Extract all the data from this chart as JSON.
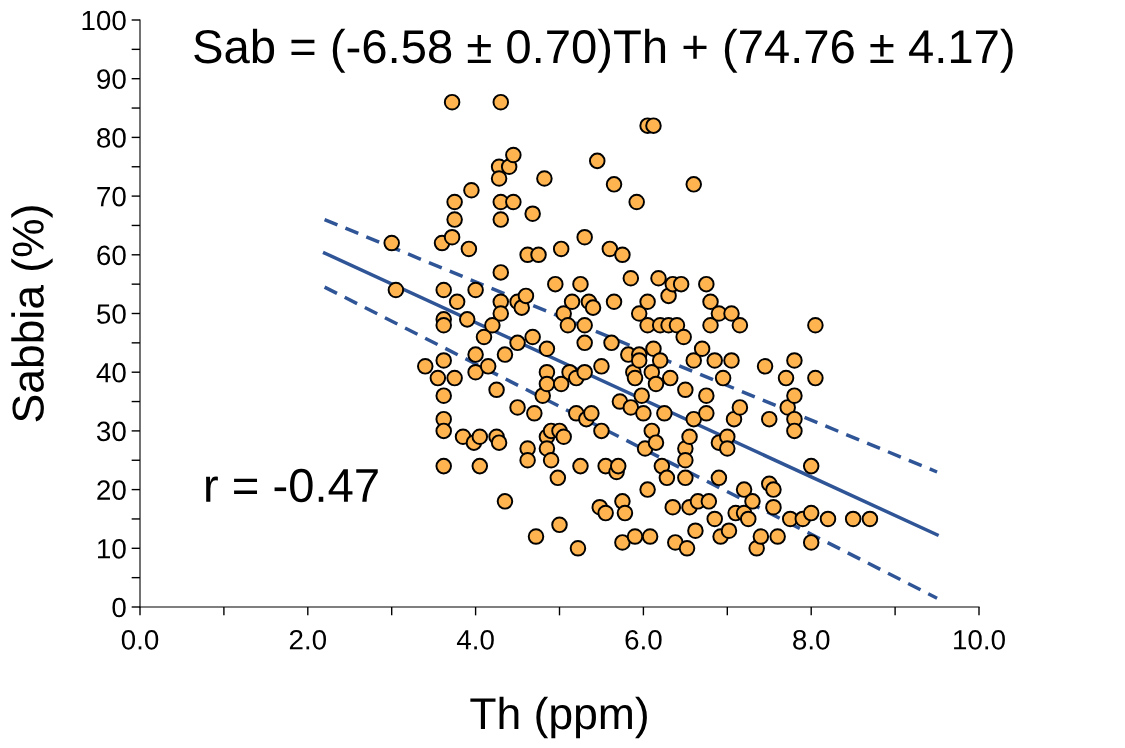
{
  "chart_data": {
    "type": "scatter",
    "xlabel": "Th (ppm)",
    "ylabel": "Sabbia (%)",
    "xlim": [
      0,
      10
    ],
    "ylim": [
      0,
      100
    ],
    "xticks": [
      {
        "value": 0,
        "label": "0.0"
      },
      {
        "value": 1,
        "label": null
      },
      {
        "value": 2,
        "label": "2.0"
      },
      {
        "value": 3,
        "label": null
      },
      {
        "value": 4,
        "label": "4.0"
      },
      {
        "value": 5,
        "label": null
      },
      {
        "value": 6,
        "label": "6.0"
      },
      {
        "value": 7,
        "label": null
      },
      {
        "value": 8,
        "label": "8.0"
      },
      {
        "value": 9,
        "label": null
      },
      {
        "value": 10,
        "label": "10.0"
      }
    ],
    "yticks": [
      0,
      {
        "value": 5,
        "label": null
      },
      10,
      {
        "value": 15,
        "label": null
      },
      20,
      {
        "value": 25,
        "label": null
      },
      30,
      {
        "value": 35,
        "label": null
      },
      40,
      {
        "value": 45,
        "label": null
      },
      50,
      {
        "value": 55,
        "label": null
      },
      60,
      {
        "value": 65,
        "label": null
      },
      70,
      {
        "value": 75,
        "label": null
      },
      80,
      {
        "value": 85,
        "label": null
      },
      90,
      {
        "value": 95,
        "label": null
      },
      100
    ],
    "grid": false,
    "legend": false,
    "marker": "circle",
    "annotations": [
      "Sab = (-6.58 ± 0.70)Th + (74.76 ± 4.17)",
      "r = -0.47"
    ],
    "series": [
      {
        "color": "#ffb44f",
        "x": [
          3.0,
          3.05,
          3.4,
          3.55,
          3.6,
          3.62,
          3.62,
          3.62,
          3.62,
          3.62,
          3.62,
          3.62,
          3.62,
          3.72,
          3.75,
          3.75,
          3.72,
          3.78,
          3.75,
          3.85,
          3.9,
          3.92,
          3.95,
          3.98,
          4.0,
          4.0,
          4.0,
          4.05,
          4.05,
          4.1,
          4.15,
          4.2,
          4.25,
          4.25,
          4.28,
          4.3,
          4.28,
          4.28,
          4.3,
          4.3,
          4.3,
          4.3,
          4.3,
          4.35,
          4.35,
          4.4,
          4.45,
          4.45,
          4.5,
          4.5,
          4.5,
          4.55,
          4.6,
          4.62,
          4.62,
          4.62,
          4.68,
          4.68,
          4.7,
          4.72,
          4.75,
          4.8,
          4.82,
          4.85,
          4.85,
          4.85,
          4.85,
          4.85,
          4.9,
          4.9,
          4.95,
          4.98,
          5.0,
          5.0,
          5.02,
          5.02,
          5.05,
          5.05,
          5.1,
          5.12,
          5.15,
          5.2,
          5.2,
          5.22,
          5.25,
          5.25,
          5.3,
          5.3,
          5.3,
          5.3,
          5.32,
          5.35,
          5.38,
          5.4,
          5.45,
          5.48,
          5.5,
          5.5,
          5.55,
          5.55,
          5.6,
          5.62,
          5.65,
          5.65,
          5.68,
          5.7,
          5.72,
          5.75,
          5.75,
          5.75,
          5.78,
          5.82,
          5.85,
          5.85,
          5.88,
          5.9,
          5.9,
          5.92,
          5.95,
          5.95,
          5.95,
          5.98,
          6.0,
          6.02,
          6.05,
          6.05,
          6.05,
          6.05,
          6.08,
          6.1,
          6.1,
          6.12,
          6.12,
          6.15,
          6.15,
          6.18,
          6.2,
          6.2,
          6.22,
          6.25,
          6.28,
          6.3,
          6.3,
          6.32,
          6.35,
          6.35,
          6.38,
          6.4,
          6.45,
          6.48,
          6.5,
          6.5,
          6.5,
          6.5,
          6.52,
          6.55,
          6.55,
          6.6,
          6.6,
          6.6,
          6.62,
          6.65,
          6.7,
          6.75,
          6.75,
          6.75,
          6.78,
          6.8,
          6.8,
          6.85,
          6.85,
          6.9,
          6.9,
          6.9,
          6.92,
          6.95,
          7.0,
          7.0,
          7.02,
          7.05,
          7.05,
          7.08,
          7.1,
          7.15,
          7.15,
          7.2,
          7.2,
          7.25,
          7.3,
          7.35,
          7.4,
          7.45,
          7.5,
          7.5,
          7.55,
          7.55,
          7.6,
          7.7,
          7.72,
          7.75,
          7.8,
          7.8,
          7.8,
          7.8,
          7.9,
          8.0,
          8.0,
          8.0,
          8.05,
          8.05,
          8.2,
          8.5,
          8.7
        ],
        "values": [
          62,
          54,
          41,
          39,
          62,
          54,
          49,
          48,
          42,
          36,
          32,
          30,
          24,
          86,
          69,
          66,
          63,
          52,
          39,
          29,
          49,
          61,
          71,
          28,
          54,
          43,
          40,
          29,
          24,
          46,
          41,
          48,
          37,
          29,
          28,
          86,
          75,
          73,
          69,
          66,
          57,
          52,
          50,
          43,
          18,
          75,
          77,
          69,
          52,
          45,
          34,
          51,
          53,
          60,
          27,
          25,
          67,
          46,
          33,
          12,
          60,
          36,
          73,
          44,
          40,
          38,
          29,
          27,
          30,
          25,
          55,
          22,
          14,
          30,
          38,
          61,
          50,
          29,
          48,
          40,
          52,
          39,
          33,
          10,
          55,
          24,
          63,
          48,
          45,
          40,
          32,
          52,
          33,
          51,
          76,
          17,
          30,
          41,
          24,
          16,
          61,
          45,
          52,
          72,
          23,
          24,
          35,
          60,
          18,
          11,
          16,
          43,
          56,
          34,
          40,
          39,
          12,
          69,
          50,
          43,
          42,
          36,
          33,
          27,
          82,
          52,
          48,
          20,
          12,
          40,
          30,
          82,
          44,
          38,
          28,
          56,
          48,
          42,
          24,
          33,
          22,
          53,
          48,
          39,
          55,
          17,
          11,
          48,
          55,
          46,
          37,
          27,
          25,
          22,
          10,
          29,
          17,
          72,
          42,
          32,
          13,
          18,
          44,
          55,
          36,
          33,
          18,
          52,
          48,
          42,
          15,
          50,
          28,
          22,
          12,
          39,
          29,
          27,
          13,
          50,
          42,
          32,
          16,
          48,
          34,
          20,
          16,
          15,
          18,
          10,
          12,
          41,
          32,
          21,
          20,
          17,
          12,
          39,
          34,
          15,
          42,
          36,
          32,
          30,
          15,
          24,
          16,
          11,
          48,
          39,
          15,
          15,
          15
        ]
      },
      {
        "type": "line",
        "color": "#2f5597",
        "line_style": "solid",
        "marker": "none",
        "x": [
          2.2,
          9.5
        ],
        "values": [
          60.3,
          12.3
        ]
      },
      {
        "type": "line",
        "color": "#2f5597",
        "line_style": "dashed",
        "marker": "none",
        "x": [
          2.2,
          9.5
        ],
        "values": [
          66,
          23
        ]
      },
      {
        "type": "line",
        "color": "#2f5597",
        "line_style": "dashed",
        "marker": "none",
        "x": [
          2.2,
          9.5
        ],
        "values": [
          54.5,
          1.5
        ]
      }
    ]
  }
}
